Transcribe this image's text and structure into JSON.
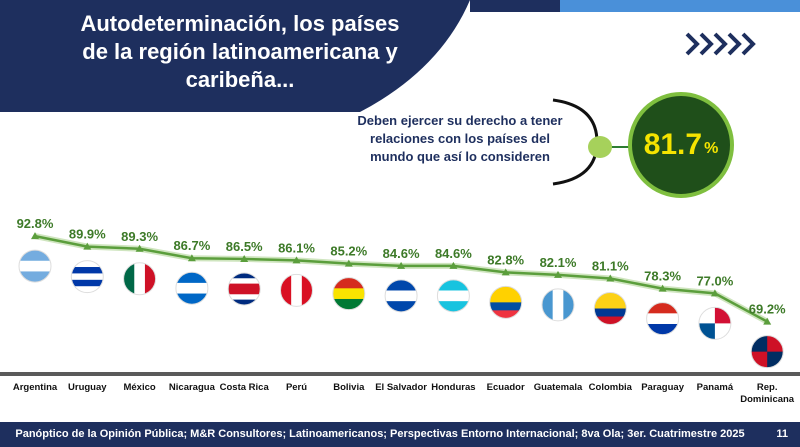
{
  "header": {
    "title": "Autodeterminación, los países\nde la región latinoamericana y\ncaribeña...",
    "colors": {
      "navy": "#1e2f5e",
      "blue_accent": "#4a90d9"
    }
  },
  "callout": {
    "statement": "Deben ejercer su derecho a tener\nrelaciones con los países del\nmundo que así lo consideren",
    "value": "81.7",
    "unit": "%"
  },
  "chart_data": {
    "type": "line",
    "title": "",
    "categories": [
      "Argentina",
      "Uruguay",
      "México",
      "Nicaragua",
      "Costa Rica",
      "Perú",
      "Bolivia",
      "El Salvador",
      "Honduras",
      "Ecuador",
      "Guatemala",
      "Colombia",
      "Paraguay",
      "Panamá",
      "Rep.\nDominicana"
    ],
    "values": [
      92.8,
      89.9,
      89.3,
      86.7,
      86.5,
      86.1,
      85.2,
      84.6,
      84.6,
      82.8,
      82.1,
      81.1,
      78.3,
      77.0,
      69.2
    ],
    "labels": [
      "92.8%",
      "89.9%",
      "89.3%",
      "86.7%",
      "86.5%",
      "86.1%",
      "85.2%",
      "84.6%",
      "84.6%",
      "82.8%",
      "82.1%",
      "81.1%",
      "78.3%",
      "77.0%",
      "69.2%"
    ],
    "ylim": [
      60,
      100
    ],
    "xlabel": "",
    "ylabel": "",
    "line_color": "#5b9e3c",
    "label_color": "#3d7a28",
    "flag_icons": [
      "argentina-flag-icon",
      "uruguay-flag-icon",
      "mexico-flag-icon",
      "nicaragua-flag-icon",
      "costa-rica-flag-icon",
      "peru-flag-icon",
      "bolivia-flag-icon",
      "el-salvador-flag-icon",
      "honduras-flag-icon",
      "ecuador-flag-icon",
      "guatemala-flag-icon",
      "colombia-flag-icon",
      "paraguay-flag-icon",
      "panama-flag-icon",
      "dominican-republic-flag-icon"
    ]
  },
  "footer": {
    "source": "Panóptico de la Opinión Pública; M&R Consultores; Latinoamericanos; Perspectivas Entorno Internacional; 8va Ola; 3er. Cuatrimestre 2025",
    "page": "11"
  }
}
